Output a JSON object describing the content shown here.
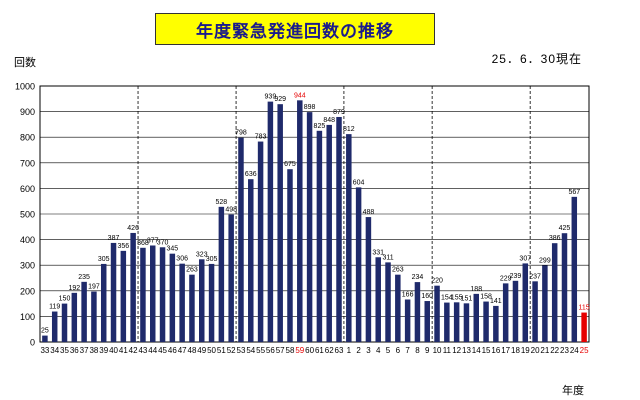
{
  "chart_data": {
    "type": "bar",
    "title": "年度緊急発進回数の推移",
    "as_of": "25．6．30現在",
    "ylabel": "回数",
    "xlabel": "年度",
    "ylim": [
      0,
      1000
    ],
    "yticks": [
      0,
      100,
      200,
      300,
      400,
      500,
      600,
      700,
      800,
      900,
      1000
    ],
    "grid": true,
    "categories": [
      "33",
      "34",
      "35",
      "36",
      "37",
      "38",
      "39",
      "40",
      "41",
      "42",
      "43",
      "44",
      "45",
      "46",
      "47",
      "48",
      "49",
      "50",
      "51",
      "52",
      "53",
      "54",
      "55",
      "56",
      "57",
      "58",
      "59",
      "60",
      "61",
      "62",
      "63",
      "1",
      "2",
      "3",
      "4",
      "5",
      "6",
      "7",
      "8",
      "9",
      "10",
      "11",
      "12",
      "13",
      "14",
      "15",
      "16",
      "17",
      "18",
      "19",
      "20",
      "21",
      "22",
      "23",
      "24",
      "25"
    ],
    "values": [
      25,
      119,
      150,
      192,
      235,
      197,
      305,
      387,
      356,
      426,
      368,
      377,
      370,
      345,
      306,
      263,
      323,
      305,
      528,
      498,
      798,
      636,
      783,
      939,
      929,
      675,
      944,
      898,
      825,
      848,
      879,
      812,
      604,
      488,
      331,
      311,
      263,
      166,
      234,
      160,
      220,
      154,
      155,
      151,
      188,
      158,
      141,
      229,
      239,
      307,
      237,
      299,
      386,
      425,
      567,
      115
    ],
    "highlight_categories": [
      "59",
      "25"
    ],
    "era_dividers_after": [
      "42",
      "52",
      "63",
      "9",
      "19"
    ],
    "bar_color": "#1f2a6b",
    "highlight_bar_color": "#e60000",
    "highlight_label_color": "#e60000"
  }
}
